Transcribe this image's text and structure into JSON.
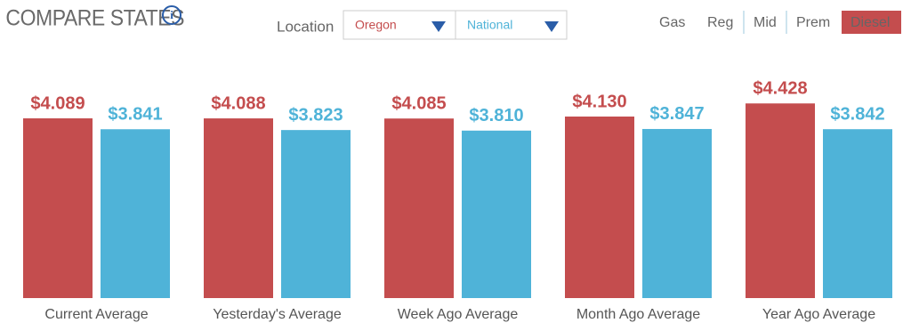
{
  "header": {
    "title": "COMPARE STATES",
    "location_label": "Location",
    "fuel_tabs": [
      "Gas",
      "Reg",
      "Mid",
      "Prem",
      "Diesel"
    ],
    "active_tab": 4
  },
  "chart_data": {
    "type": "bar",
    "categories": [
      "Current Average",
      "Yesterday's Average",
      "Week Ago Average",
      "Month Ago Average",
      "Year Ago Average"
    ],
    "series": [
      {
        "name": "Oregon",
        "color": "#c44d4e",
        "values": [
          4.089,
          4.088,
          4.085,
          4.13,
          4.428
        ],
        "value_labels": [
          "$4.089",
          "$4.088",
          "$4.085",
          "$4.130",
          "$4.428"
        ]
      },
      {
        "name": "National",
        "color": "#4fb3d8",
        "values": [
          3.841,
          3.823,
          3.81,
          3.847,
          3.842
        ],
        "value_labels": [
          "$3.841",
          "$3.823",
          "$3.810",
          "$3.847",
          "$3.842"
        ]
      }
    ]
  }
}
